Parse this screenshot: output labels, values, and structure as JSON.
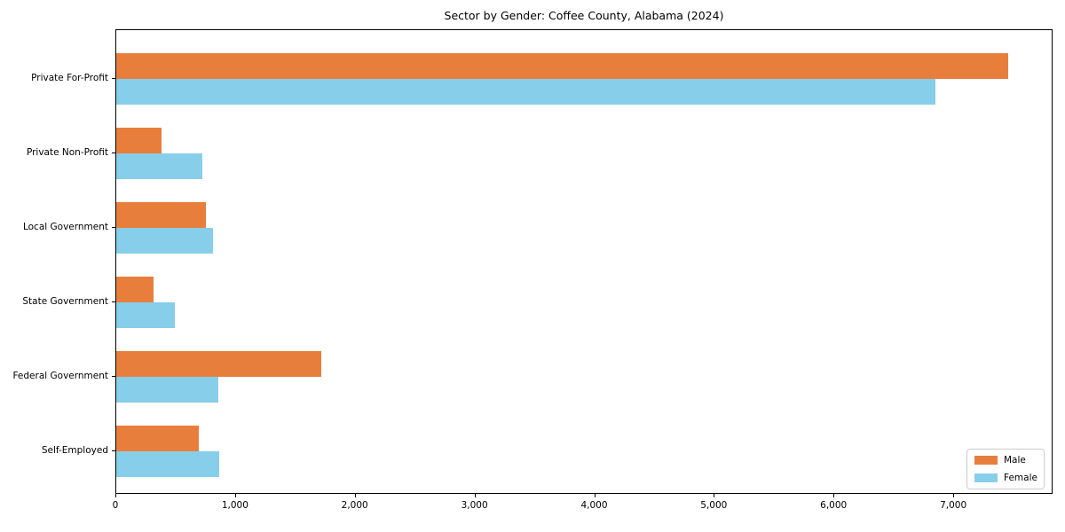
{
  "chart_data": {
    "type": "bar",
    "orientation": "horizontal",
    "title": "Sector by Gender: Coffee County, Alabama (2024)",
    "categories": [
      "Private For-Profit",
      "Private Non-Profit",
      "Local Government",
      "State Government",
      "Federal Government",
      "Self-Employed"
    ],
    "series": [
      {
        "name": "Male",
        "color": "#e87e3c",
        "values": [
          7450,
          375,
          745,
          310,
          1710,
          690
        ]
      },
      {
        "name": "Female",
        "color": "#87ceeb",
        "values": [
          6840,
          720,
          810,
          490,
          855,
          860
        ]
      }
    ],
    "xlabel": "",
    "ylabel": "",
    "xlim": [
      0,
      7830
    ],
    "x_ticks": [
      0,
      1000,
      2000,
      3000,
      4000,
      5000,
      6000,
      7000
    ],
    "x_tick_labels": [
      "0",
      "1,000",
      "2,000",
      "3,000",
      "4,000",
      "5,000",
      "6,000",
      "7,000"
    ],
    "grid": false,
    "legend": {
      "position": "lower right",
      "entries": [
        "Male",
        "Female"
      ]
    }
  },
  "colors": {
    "male": "#e87e3c",
    "female": "#87ceeb",
    "axis": "#000000",
    "legend_border": "#cccccc",
    "background": "#ffffff"
  }
}
